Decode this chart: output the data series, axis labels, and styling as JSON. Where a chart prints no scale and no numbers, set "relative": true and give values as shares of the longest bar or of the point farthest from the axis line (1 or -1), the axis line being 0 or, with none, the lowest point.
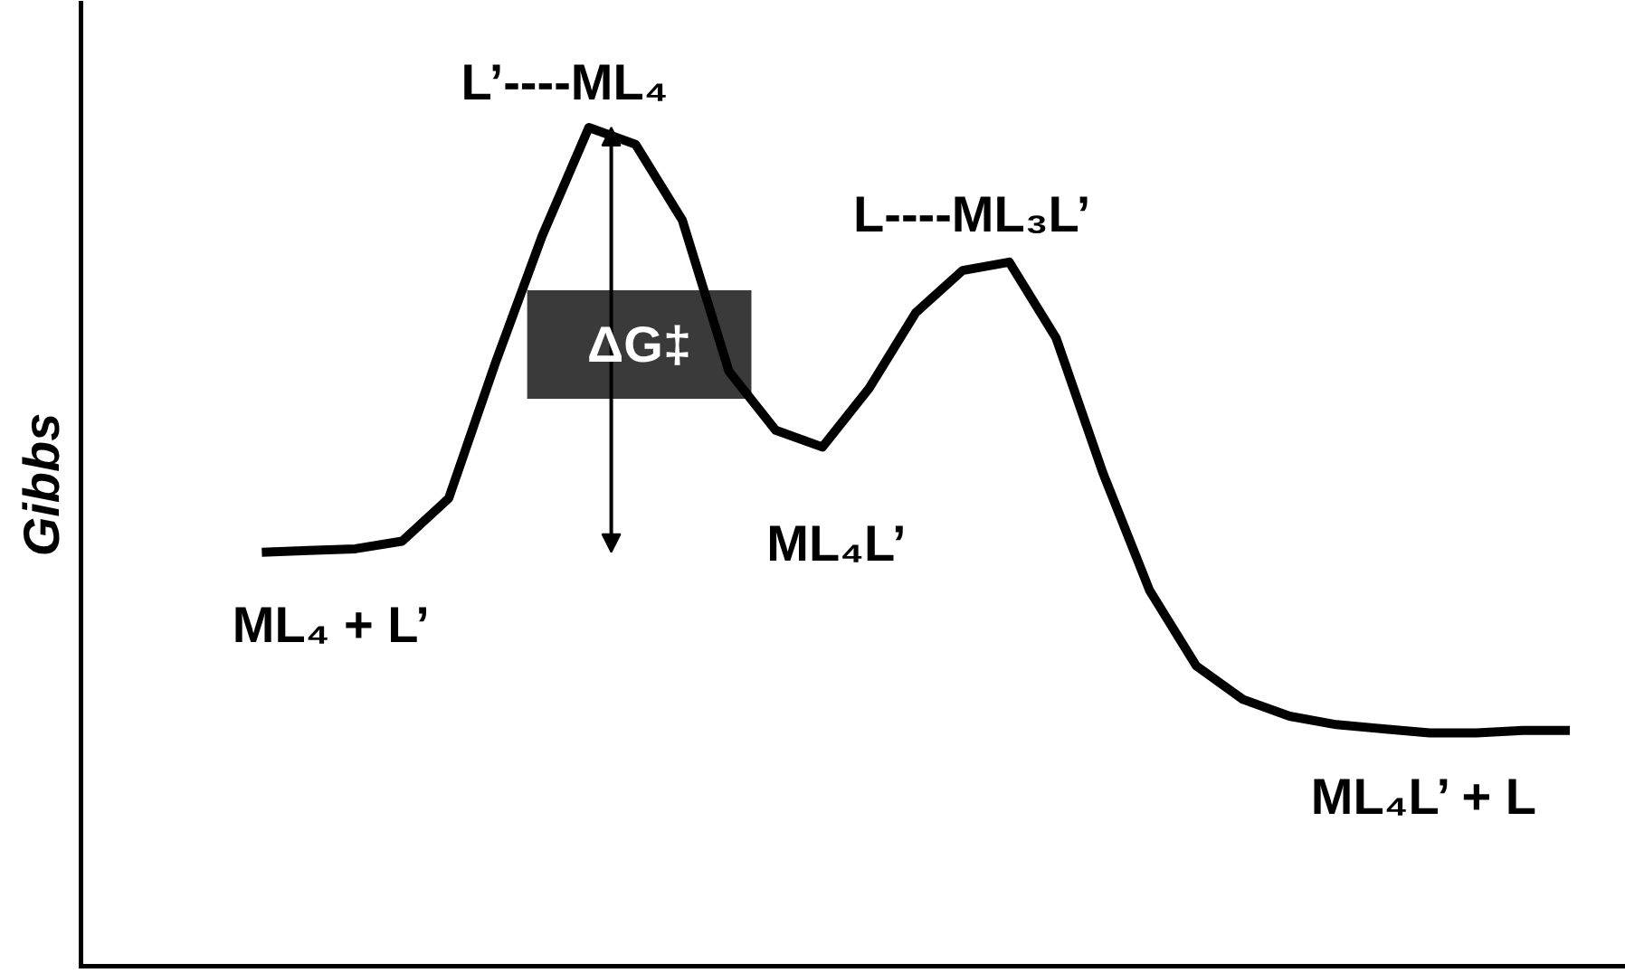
{
  "chart_data": {
    "type": "line",
    "relative": true,
    "ylabel": "Gibbs",
    "categories": [
      null,
      null,
      null,
      null,
      null,
      null,
      null,
      null,
      null,
      null,
      null,
      null,
      null,
      null,
      null,
      null,
      null,
      null,
      null,
      null,
      null,
      null,
      null,
      null,
      null,
      null,
      null,
      null,
      null
    ],
    "series": [
      {
        "color": "#000000",
        "values": [
          0.495,
          0.497,
          0.499,
          0.508,
          0.559,
          0.72,
          0.871,
          1.0,
          0.98,
          0.89,
          0.71,
          0.64,
          0.62,
          0.69,
          0.78,
          0.83,
          0.84,
          0.75,
          0.59,
          0.45,
          0.36,
          0.32,
          0.3,
          0.29,
          0.285,
          0.28,
          0.28,
          0.283,
          0.283
        ]
      }
    ],
    "annotations": [
      "L’----ML₄",
      "L----ML₃L’",
      "ML₄ + L’",
      "ML₄L’",
      "ML₄L’ + L",
      "ΔG‡"
    ],
    "grid": false,
    "marker": "none",
    "line_style": "solid"
  }
}
